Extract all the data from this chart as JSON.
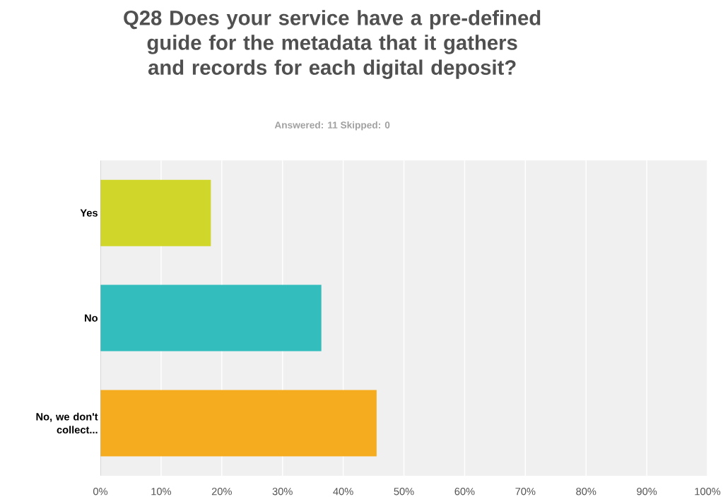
{
  "chart_data": {
    "type": "bar",
    "orientation": "horizontal",
    "title": "Q28 Does your service have a pre-defined guide for the metadata that it gathers and records for each digital deposit?",
    "subtitle": "Answered: 11    Skipped: 0",
    "categories": [
      "Yes",
      "No",
      "No, we don't collect..."
    ],
    "values": [
      18.2,
      36.4,
      45.5
    ],
    "colors": [
      "#d1d62a",
      "#33bdbd",
      "#f5ad1f"
    ],
    "xlim": [
      0,
      100
    ],
    "xticks": [
      {
        "value": 0,
        "label": "0%"
      },
      {
        "value": 10,
        "label": "10%"
      },
      {
        "value": 20,
        "label": "20%"
      },
      {
        "value": 30,
        "label": "30%"
      },
      {
        "value": 40,
        "label": "40%"
      },
      {
        "value": 50,
        "label": "50%"
      },
      {
        "value": 60,
        "label": "60%"
      },
      {
        "value": 70,
        "label": "70%"
      },
      {
        "value": 80,
        "label": "80%"
      },
      {
        "value": 90,
        "label": "90%"
      },
      {
        "value": 100,
        "label": "100%"
      }
    ],
    "grid": "x"
  }
}
